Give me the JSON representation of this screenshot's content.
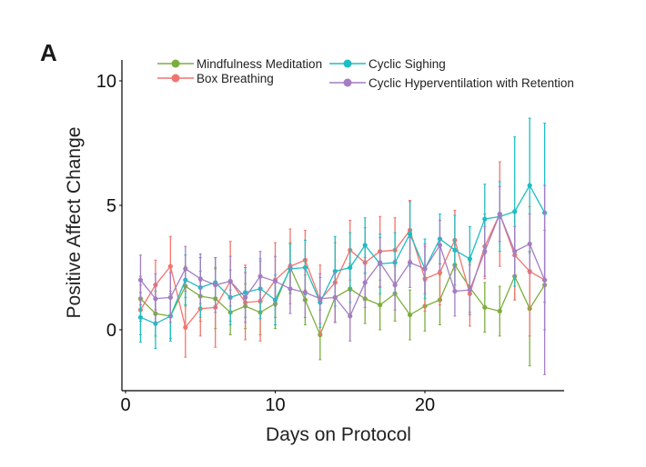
{
  "chart_data": {
    "type": "line",
    "panel_label": "A",
    "title": "",
    "xlabel": "Days on Protocol",
    "ylabel": "Positive Affect Change",
    "xlim": [
      0,
      29.5
    ],
    "ylim": [
      -2.5,
      10.7
    ],
    "xticks": [
      0,
      10,
      20
    ],
    "yticks": [
      0,
      5,
      10
    ],
    "grid": false,
    "legend_position": "top",
    "x": [
      1,
      2,
      3,
      4,
      5,
      6,
      7,
      8,
      9,
      10,
      11,
      12,
      13,
      14,
      15,
      16,
      17,
      18,
      19,
      20,
      21,
      22,
      23,
      24,
      25,
      26,
      27,
      28
    ],
    "series": [
      {
        "name": "Mindfulness Meditation",
        "color": "#7CAE3E",
        "values": [
          1.25,
          0.65,
          0.55,
          1.75,
          1.35,
          1.25,
          0.7,
          0.95,
          0.7,
          1.05,
          2.5,
          1.2,
          -0.2,
          1.3,
          1.65,
          1.25,
          1.0,
          1.45,
          0.6,
          0.95,
          1.2,
          2.6,
          1.7,
          0.9,
          0.75,
          2.15,
          0.85,
          1.8
        ],
        "err": [
          0.9,
          0.9,
          0.9,
          0.8,
          1.0,
          1.2,
          0.9,
          0.9,
          0.9,
          1.0,
          1.0,
          1.0,
          1.0,
          1.0,
          1.0,
          1.0,
          1.0,
          1.1,
          1.0,
          1.0,
          1.0,
          1.0,
          1.0,
          1.0,
          1.0,
          0.95,
          2.3,
          0.0
        ]
      },
      {
        "name": "Box Breathing",
        "color": "#F1756D",
        "values": [
          0.8,
          1.8,
          2.55,
          0.1,
          0.85,
          0.9,
          1.95,
          1.1,
          1.15,
          2.0,
          2.55,
          2.8,
          1.2,
          1.9,
          3.2,
          2.7,
          3.15,
          3.2,
          4.0,
          2.05,
          2.3,
          3.6,
          1.45,
          3.35,
          4.65,
          3.0,
          2.35,
          2.0
        ],
        "err": [
          1.0,
          1.0,
          1.2,
          1.2,
          1.1,
          1.6,
          1.6,
          1.5,
          1.6,
          1.5,
          1.5,
          1.2,
          1.4,
          1.6,
          1.2,
          1.4,
          1.4,
          1.3,
          1.2,
          1.3,
          1.3,
          1.2,
          1.3,
          1.3,
          2.1,
          1.8,
          2.6,
          2.0
        ]
      },
      {
        "name": "Cyclic Sighing",
        "color": "#1EBDC2",
        "values": [
          0.5,
          0.25,
          0.55,
          2.0,
          1.7,
          1.9,
          1.3,
          1.5,
          1.65,
          1.2,
          2.45,
          2.5,
          1.1,
          2.35,
          2.5,
          3.4,
          2.65,
          2.7,
          3.85,
          2.45,
          3.65,
          3.2,
          2.85,
          4.45,
          4.55,
          4.75,
          5.8,
          4.7
        ],
        "err": [
          1.0,
          1.0,
          1.0,
          1.0,
          1.2,
          1.0,
          1.1,
          1.0,
          1.2,
          1.0,
          1.0,
          1.1,
          1.0,
          1.4,
          1.4,
          1.1,
          1.2,
          1.2,
          1.3,
          1.2,
          1.0,
          1.4,
          1.3,
          1.4,
          1.4,
          3.0,
          2.7,
          3.6
        ]
      },
      {
        "name": "Cyclic Hyperventilation with Retention",
        "color": "#A37DC2",
        "values": [
          2.0,
          1.25,
          1.3,
          2.45,
          2.05,
          1.8,
          1.95,
          1.3,
          2.15,
          1.95,
          1.65,
          1.5,
          1.25,
          1.3,
          0.55,
          1.9,
          2.7,
          1.8,
          2.7,
          2.45,
          3.4,
          1.55,
          1.6,
          3.15,
          4.65,
          3.15,
          3.45,
          2.0
        ],
        "err": [
          1.0,
          1.0,
          1.0,
          0.9,
          1.0,
          1.1,
          1.0,
          1.0,
          1.0,
          1.0,
          1.0,
          1.0,
          1.0,
          1.0,
          1.0,
          1.0,
          1.0,
          1.0,
          1.0,
          1.0,
          1.0,
          1.0,
          1.0,
          1.0,
          1.1,
          1.0,
          1.2,
          3.8
        ]
      }
    ]
  }
}
